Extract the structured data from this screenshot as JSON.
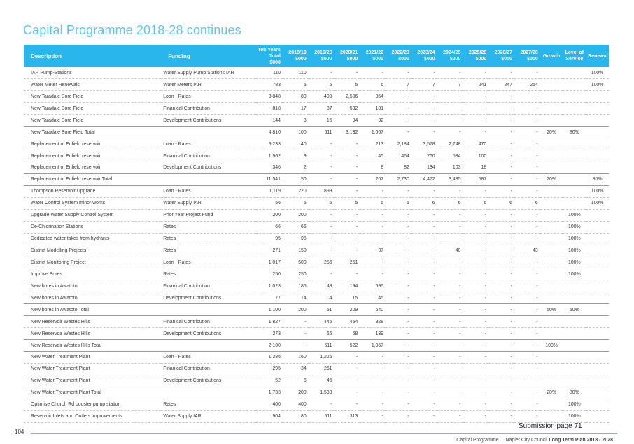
{
  "page_title": "Capital Programme 2018-28 continues",
  "table": {
    "headers": {
      "description": "Description",
      "funding": "Funding",
      "total": "Ten Years Total $000",
      "y1": "2018/19 $000",
      "y2": "2019/20 $000",
      "y3": "2020/21 $000",
      "y4": "2021/22 $000",
      "y5": "2022/23 $000",
      "y6": "2023/24 $000",
      "y7": "2024/25 $000",
      "y8": "2025/26 $000",
      "y9": "2026/27 $000",
      "y10": "2027/28 $000",
      "growth": "Growth",
      "los": "Level of Service",
      "renewal": "Renewal"
    },
    "rows": [
      {
        "desc": "IAR Pump-Stations",
        "fund": "Water Supply Pump Stations IAR",
        "total": "110",
        "y": [
          "110",
          "-",
          "-",
          "-",
          "-",
          "-",
          "-",
          "-",
          "-",
          "-"
        ],
        "growth": "",
        "los": "",
        "renewal": "100%",
        "is_total": false
      },
      {
        "desc": "Water Meter Renewals",
        "fund": "Water Meters IAR",
        "total": "783",
        "y": [
          "5",
          "5",
          "5",
          "6",
          "7",
          "7",
          "7",
          "241",
          "247",
          "254"
        ],
        "growth": "",
        "los": "",
        "renewal": "100%",
        "is_total": false
      },
      {
        "desc": "New Taradale Bore Field",
        "fund": "Loan - Rates",
        "total": "3,848",
        "y": [
          "80",
          "409",
          "2,506",
          "854",
          "-",
          "-",
          "-",
          "-",
          "-",
          "-"
        ],
        "growth": "",
        "los": "",
        "renewal": "",
        "is_total": false
      },
      {
        "desc": "New Taradale Bore Field",
        "fund": "Finanical Contribution",
        "total": "818",
        "y": [
          "17",
          "87",
          "532",
          "181",
          "-",
          "-",
          "-",
          "-",
          "-",
          "-"
        ],
        "growth": "",
        "los": "",
        "renewal": "",
        "is_total": false
      },
      {
        "desc": "New Taradale Bore Field",
        "fund": "Development Contributions",
        "total": "144",
        "y": [
          "3",
          "15",
          "94",
          "32",
          "-",
          "-",
          "-",
          "-",
          "-",
          "-"
        ],
        "growth": "",
        "los": "",
        "renewal": "",
        "is_total": false
      },
      {
        "desc": "New Taradale Bore Field Total",
        "fund": "",
        "total": "4,810",
        "y": [
          "100",
          "511",
          "3,132",
          "1,067",
          "-",
          "-",
          "-",
          "-",
          "-",
          "-"
        ],
        "growth": "20%",
        "los": "80%",
        "renewal": "",
        "is_total": true
      },
      {
        "desc": "Replacement of Enfield reservoir",
        "fund": "Loan - Rates",
        "total": "9,233",
        "y": [
          "40",
          "-",
          "-",
          "213",
          "2,184",
          "3,578",
          "2,748",
          "470",
          "-",
          "-"
        ],
        "growth": "",
        "los": "",
        "renewal": "",
        "is_total": false
      },
      {
        "desc": "Replacement of Enfield reservoir",
        "fund": "Finanical Contribution",
        "total": "1,962",
        "y": [
          "9",
          "-",
          "-",
          "45",
          "464",
          "760",
          "584",
          "100",
          "-",
          "-"
        ],
        "growth": "",
        "los": "",
        "renewal": "",
        "is_total": false
      },
      {
        "desc": "Replacement of Enfield reservoir",
        "fund": "Development Contributions",
        "total": "346",
        "y": [
          "2",
          "-",
          "-",
          "8",
          "82",
          "134",
          "103",
          "18",
          "-",
          "-"
        ],
        "growth": "",
        "los": "",
        "renewal": "",
        "is_total": false
      },
      {
        "desc": "Replacement of Enfield reservoir Total",
        "fund": "",
        "total": "11,541",
        "y": [
          "50",
          "-",
          "-",
          "267",
          "2,730",
          "4,472",
          "3,435",
          "587",
          "-",
          "-"
        ],
        "growth": "20%",
        "los": "",
        "renewal": "80%",
        "is_total": true
      },
      {
        "desc": "Thompson Reservoir Upgrade",
        "fund": "Loan - Rates",
        "total": "1,119",
        "y": [
          "220",
          "899",
          "-",
          "-",
          "-",
          "-",
          "-",
          "-",
          "-",
          "-"
        ],
        "growth": "",
        "los": "",
        "renewal": "100%",
        "is_total": false
      },
      {
        "desc": "Water Control System minor works",
        "fund": "Water Supply IAR",
        "total": "56",
        "y": [
          "5",
          "5",
          "5",
          "5",
          "5",
          "6",
          "6",
          "6",
          "6",
          "6"
        ],
        "growth": "",
        "los": "",
        "renewal": "100%",
        "is_total": false
      },
      {
        "desc": "Upgrade Water Supply Control System",
        "fund": "Prior Year Project Fund",
        "total": "200",
        "y": [
          "200",
          "-",
          "-",
          "-",
          "-",
          "-",
          "-",
          "-",
          "-",
          "-"
        ],
        "growth": "",
        "los": "100%",
        "renewal": "",
        "is_total": false
      },
      {
        "desc": "De-Chlorination Stations",
        "fund": "Rates",
        "total": "66",
        "y": [
          "66",
          "-",
          "-",
          "-",
          "-",
          "-",
          "-",
          "-",
          "-",
          "-"
        ],
        "growth": "",
        "los": "100%",
        "renewal": "",
        "is_total": false
      },
      {
        "desc": "Dedicated water takes from hydrants",
        "fund": "Rates",
        "total": "95",
        "y": [
          "95",
          "-",
          "-",
          "-",
          "-",
          "-",
          "-",
          "-",
          "-",
          "-"
        ],
        "growth": "",
        "los": "100%",
        "renewal": "",
        "is_total": false
      },
      {
        "desc": "District Modelling Projects",
        "fund": "Rates",
        "total": "271",
        "y": [
          "150",
          "-",
          "-",
          "37",
          "-",
          "-",
          "40",
          "-",
          "-",
          "43"
        ],
        "growth": "",
        "los": "100%",
        "renewal": "",
        "is_total": false
      },
      {
        "desc": "District Monitoring Project",
        "fund": "Loan - Rates",
        "total": "1,017",
        "y": [
          "500",
          "256",
          "261",
          "-",
          "-",
          "-",
          "-",
          "-",
          "-",
          "-"
        ],
        "growth": "",
        "los": "100%",
        "renewal": "",
        "is_total": false
      },
      {
        "desc": "Improve Bores",
        "fund": "Rates",
        "total": "250",
        "y": [
          "250",
          "-",
          "-",
          "-",
          "-",
          "-",
          "-",
          "-",
          "-",
          "-"
        ],
        "growth": "",
        "los": "100%",
        "renewal": "",
        "is_total": false
      },
      {
        "desc": "New bores in Awatoto",
        "fund": "Finanical Contribution",
        "total": "1,023",
        "y": [
          "186",
          "48",
          "194",
          "595",
          "-",
          "-",
          "-",
          "-",
          "-",
          "-"
        ],
        "growth": "",
        "los": "",
        "renewal": "",
        "is_total": false
      },
      {
        "desc": "New bores in Awatoto",
        "fund": "Development Contributions",
        "total": "77",
        "y": [
          "14",
          "4",
          "15",
          "45",
          "-",
          "-",
          "-",
          "-",
          "-",
          "-"
        ],
        "growth": "",
        "los": "",
        "renewal": "",
        "is_total": false
      },
      {
        "desc": "New bores in Awatoto Total",
        "fund": "",
        "total": "1,100",
        "y": [
          "200",
          "51",
          "209",
          "640",
          "-",
          "-",
          "-",
          "-",
          "-",
          "-"
        ],
        "growth": "50%",
        "los": "50%",
        "renewal": "",
        "is_total": true
      },
      {
        "desc": "New Reservoir Westes Hills",
        "fund": "Finanical Contribution",
        "total": "1,827",
        "y": [
          "-",
          "445",
          "454",
          "928",
          "-",
          "-",
          "-",
          "-",
          "-",
          "-"
        ],
        "growth": "",
        "los": "",
        "renewal": "",
        "is_total": false
      },
      {
        "desc": "New Reservoir Westes Hills",
        "fund": "Development Contributions",
        "total": "273",
        "y": [
          "-",
          "66",
          "68",
          "139",
          "-",
          "-",
          "-",
          "-",
          "-",
          "-"
        ],
        "growth": "",
        "los": "",
        "renewal": "",
        "is_total": false
      },
      {
        "desc": "New Reservoir Westes Hills Total",
        "fund": "",
        "total": "2,100",
        "y": [
          "-",
          "511",
          "522",
          "1,067",
          "-",
          "-",
          "-",
          "-",
          "-",
          "-"
        ],
        "growth": "100%",
        "los": "",
        "renewal": "",
        "is_total": true
      },
      {
        "desc": "New Water Treatment Plant",
        "fund": "Loan - Rates",
        "total": "1,386",
        "y": [
          "160",
          "1,226",
          "-",
          "-",
          "-",
          "-",
          "-",
          "-",
          "-",
          "-"
        ],
        "growth": "",
        "los": "",
        "renewal": "",
        "is_total": false
      },
      {
        "desc": "New Water Treatment Plant",
        "fund": "Finanical Contribution",
        "total": "295",
        "y": [
          "34",
          "261",
          "-",
          "-",
          "-",
          "-",
          "-",
          "-",
          "-",
          "-"
        ],
        "growth": "",
        "los": "",
        "renewal": "",
        "is_total": false
      },
      {
        "desc": "New Water Treatment Plant",
        "fund": "Development Contributions",
        "total": "52",
        "y": [
          "6",
          "46",
          "-",
          "-",
          "-",
          "-",
          "-",
          "-",
          "-",
          "-"
        ],
        "growth": "",
        "los": "",
        "renewal": "",
        "is_total": false
      },
      {
        "desc": "New Water Treatment Plant Total",
        "fund": "",
        "total": "1,733",
        "y": [
          "200",
          "1,533",
          "-",
          "-",
          "-",
          "-",
          "-",
          "-",
          "-",
          "-"
        ],
        "growth": "20%",
        "los": "80%",
        "renewal": "",
        "is_total": true
      },
      {
        "desc": "Optimise Church Rd booster pump station",
        "fund": "Rates",
        "total": "400",
        "y": [
          "400",
          "-",
          "-",
          "-",
          "-",
          "-",
          "-",
          "-",
          "-",
          "-"
        ],
        "growth": "",
        "los": "100%",
        "renewal": "",
        "is_total": false
      },
      {
        "desc": "Reservoir Inlets and Outlets Improvements",
        "fund": "Water Supply IAR",
        "total": "904",
        "y": [
          "80",
          "511",
          "313",
          "-",
          "-",
          "-",
          "-",
          "-",
          "-",
          "-"
        ],
        "growth": "",
        "los": "100%",
        "renewal": "",
        "is_total": false
      }
    ]
  },
  "submission_label": "Submission page 71",
  "page_number": "104",
  "footer": {
    "section": "Capital Programme",
    "separator": "|",
    "org": "Napier City Council",
    "plan": "Long Term Plan 2018 - 2028"
  },
  "colors": {
    "accent": "#29b6ec",
    "title": "#5bc8f2"
  }
}
